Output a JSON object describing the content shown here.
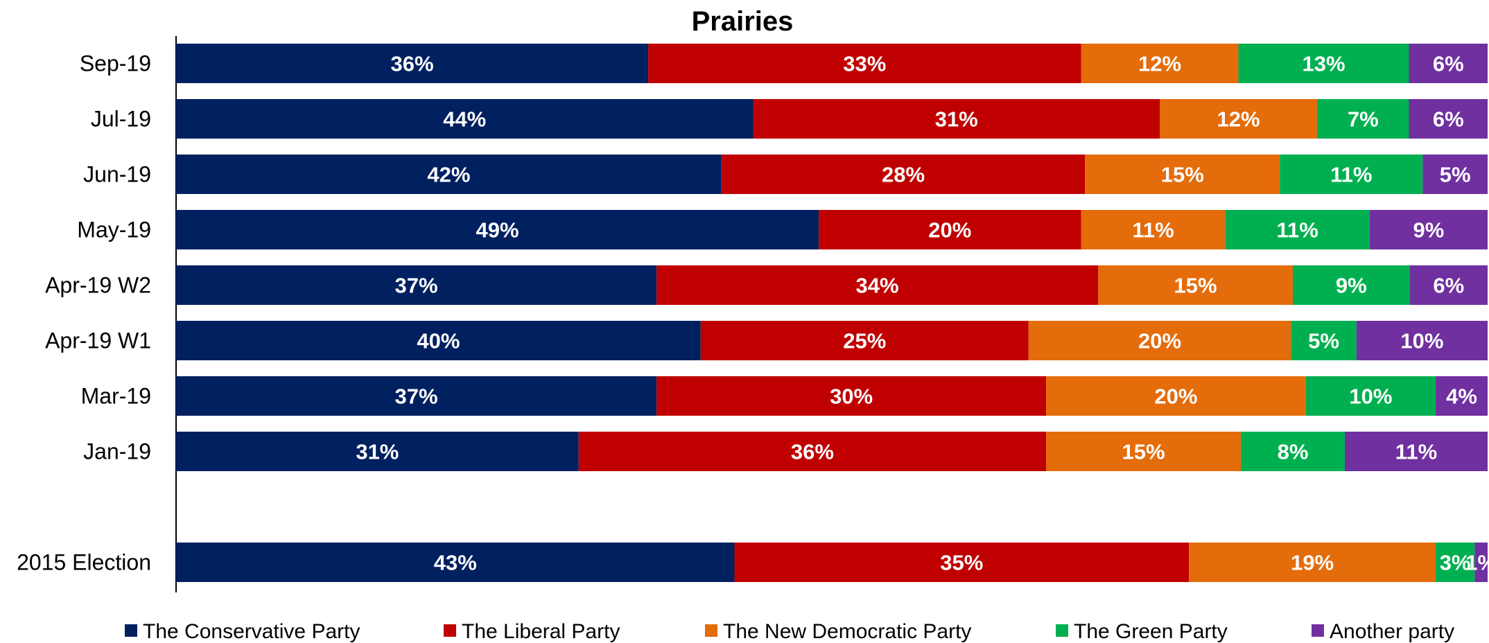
{
  "chart_data": {
    "type": "bar",
    "orientation": "horizontal",
    "stacked": true,
    "title": "Prairies",
    "categories": [
      "Sep-19",
      "Jul-19",
      "Jun-19",
      "May-19",
      "Apr-19 W2",
      "Apr-19 W1",
      "Mar-19",
      "Jan-19",
      "2015 Election"
    ],
    "series": [
      {
        "name": "The Conservative Party",
        "color": "#002060",
        "values": [
          36,
          44,
          42,
          49,
          37,
          40,
          37,
          31,
          43
        ],
        "labels": [
          "36%",
          "44%",
          "42%",
          "49%",
          "37%",
          "40%",
          "37%",
          "31%",
          "43%"
        ]
      },
      {
        "name": "The Liberal Party",
        "color": "#c00000",
        "values": [
          33,
          31,
          28,
          20,
          34,
          25,
          30,
          36,
          35
        ],
        "labels": [
          "33%",
          "31%",
          "28%",
          "20%",
          "34%",
          "25%",
          "30%",
          "36%",
          "35%"
        ]
      },
      {
        "name": "The New Democratic Party",
        "color": "#e46c0a",
        "values": [
          12,
          12,
          15,
          11,
          15,
          20,
          20,
          15,
          19
        ],
        "labels": [
          "12%",
          "12%",
          "15%",
          "11%",
          "15%",
          "20%",
          "20%",
          "15%",
          "19%"
        ]
      },
      {
        "name": "The Green Party",
        "color": "#00b050",
        "values": [
          13,
          7,
          11,
          11,
          9,
          5,
          10,
          8,
          3
        ],
        "labels": [
          "13%",
          "7%",
          "11%",
          "11%",
          "9%",
          "5%",
          "10%",
          "8%",
          "3%"
        ]
      },
      {
        "name": "Another party",
        "color": "#7030a0",
        "values": [
          6,
          6,
          5,
          9,
          6,
          10,
          4,
          11,
          1
        ],
        "labels": [
          "6%",
          "6%",
          "5%",
          "9%",
          "6%",
          "10%",
          "4%",
          "11%",
          "1%"
        ]
      }
    ],
    "xlim": [
      0,
      100
    ],
    "legend": "bottom",
    "grid": false
  }
}
